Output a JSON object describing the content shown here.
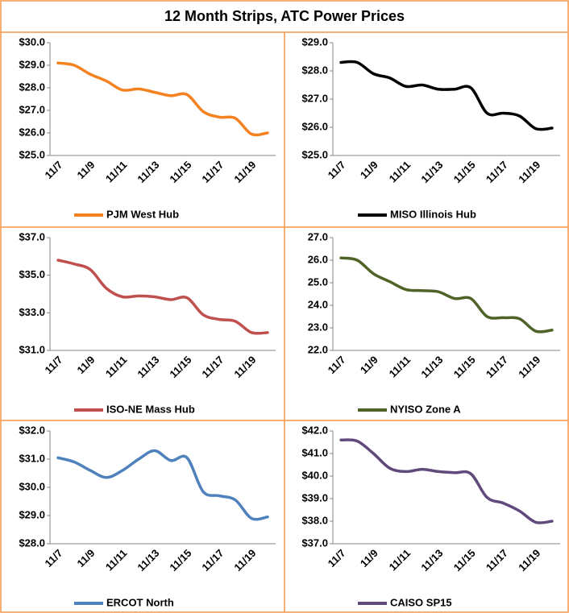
{
  "title": "12 Month Strips, ATC Power Prices",
  "chart_data": [
    {
      "type": "line",
      "categories": [
        "11/7",
        null,
        "11/9",
        null,
        "11/11",
        null,
        "11/13",
        null,
        "11/15",
        null,
        "11/17",
        null,
        "11/19",
        null
      ],
      "series": [
        {
          "name": "PJM West Hub",
          "color": "#f58220",
          "values": [
            29.1,
            29.0,
            28.6,
            28.3,
            27.9,
            27.95,
            27.8,
            27.65,
            27.7,
            26.95,
            26.7,
            26.65,
            25.95,
            26.0
          ]
        }
      ],
      "ylim": [
        25,
        30
      ],
      "yticks": [
        {
          "value": 25,
          "label": "$25.0"
        },
        {
          "value": 26,
          "label": "$26.0"
        },
        {
          "value": 27,
          "label": "$27.0"
        },
        {
          "value": 28,
          "label": "$28.0"
        },
        {
          "value": 29,
          "label": "$29.0"
        },
        {
          "value": 30,
          "label": "$30.0"
        }
      ],
      "grid": false
    },
    {
      "type": "line",
      "categories": [
        "11/7",
        null,
        "11/9",
        null,
        "11/11",
        null,
        "11/13",
        null,
        "11/15",
        null,
        "11/17",
        null,
        "11/19",
        null
      ],
      "series": [
        {
          "name": "MISO Illinois Hub",
          "color": "#000000",
          "values": [
            28.3,
            28.3,
            27.9,
            27.75,
            27.45,
            27.5,
            27.35,
            27.35,
            27.4,
            26.5,
            26.5,
            26.4,
            25.95,
            25.97
          ]
        }
      ],
      "ylim": [
        25,
        29
      ],
      "yticks": [
        {
          "value": 25,
          "label": "$25.0"
        },
        {
          "value": 26,
          "label": "$26.0"
        },
        {
          "value": 27,
          "label": "$27.0"
        },
        {
          "value": 28,
          "label": "$28.0"
        },
        {
          "value": 29,
          "label": "$29.0"
        }
      ],
      "grid": false
    },
    {
      "type": "line",
      "categories": [
        "11/7",
        null,
        "11/9",
        null,
        "11/11",
        null,
        "11/13",
        null,
        "11/15",
        null,
        "11/17",
        null,
        "11/19",
        null
      ],
      "series": [
        {
          "name": "ISO-NE Mass Hub",
          "color": "#c0504d",
          "values": [
            35.8,
            35.6,
            35.3,
            34.3,
            33.85,
            33.9,
            33.85,
            33.7,
            33.8,
            32.9,
            32.65,
            32.55,
            31.95,
            31.95
          ]
        }
      ],
      "ylim": [
        31,
        37
      ],
      "yticks": [
        {
          "value": 31,
          "label": "$31.0"
        },
        {
          "value": 33,
          "label": "$33.0"
        },
        {
          "value": 35,
          "label": "$35.0"
        },
        {
          "value": 37,
          "label": "$37.0"
        }
      ],
      "grid": false
    },
    {
      "type": "line",
      "categories": [
        "11/7",
        null,
        "11/9",
        null,
        "11/11",
        null,
        "11/13",
        null,
        "11/15",
        null,
        "11/17",
        null,
        "11/19",
        null
      ],
      "series": [
        {
          "name": "NYISO Zone A",
          "color": "#4f6228",
          "values": [
            26.1,
            26.0,
            25.4,
            25.05,
            24.7,
            24.65,
            24.6,
            24.3,
            24.3,
            23.5,
            23.45,
            23.4,
            22.85,
            22.9
          ]
        }
      ],
      "ylim": [
        22,
        27
      ],
      "yticks": [
        {
          "value": 22,
          "label": "22.0"
        },
        {
          "value": 23,
          "label": "23.0"
        },
        {
          "value": 24,
          "label": "24.0"
        },
        {
          "value": 25,
          "label": "25.0"
        },
        {
          "value": 26,
          "label": "26.0"
        },
        {
          "value": 27,
          "label": "27.0"
        }
      ],
      "grid": false
    },
    {
      "type": "line",
      "categories": [
        "11/7",
        null,
        "11/9",
        null,
        "11/11",
        null,
        "11/13",
        null,
        "11/15",
        null,
        "11/17",
        null,
        "11/19",
        null
      ],
      "series": [
        {
          "name": "ERCOT North",
          "color": "#4f81bd",
          "values": [
            31.05,
            30.9,
            30.6,
            30.35,
            30.6,
            31.0,
            31.3,
            30.95,
            31.05,
            29.85,
            29.7,
            29.55,
            28.9,
            28.95
          ]
        }
      ],
      "ylim": [
        28,
        32
      ],
      "yticks": [
        {
          "value": 28,
          "label": "$28.0"
        },
        {
          "value": 29,
          "label": "$29.0"
        },
        {
          "value": 30,
          "label": "$30.0"
        },
        {
          "value": 31,
          "label": "$31.0"
        },
        {
          "value": 32,
          "label": "$32.0"
        }
      ],
      "grid": false
    },
    {
      "type": "line",
      "categories": [
        "11/7",
        null,
        "11/9",
        null,
        "11/11",
        null,
        "11/13",
        null,
        "11/15",
        null,
        "11/17",
        null,
        "11/19",
        null
      ],
      "series": [
        {
          "name": "CAISO SP15",
          "color": "#604a7b",
          "values": [
            41.6,
            41.55,
            41.0,
            40.35,
            40.2,
            40.3,
            40.2,
            40.15,
            40.1,
            39.05,
            38.8,
            38.45,
            37.95,
            38.0
          ]
        }
      ],
      "ylim": [
        37,
        42
      ],
      "yticks": [
        {
          "value": 37,
          "label": "$37.0"
        },
        {
          "value": 38,
          "label": "$38.0"
        },
        {
          "value": 39,
          "label": "$39.0"
        },
        {
          "value": 40,
          "label": "$40.0"
        },
        {
          "value": 41,
          "label": "$41.0"
        },
        {
          "value": 42,
          "label": "$42.0"
        }
      ],
      "grid": false
    }
  ]
}
